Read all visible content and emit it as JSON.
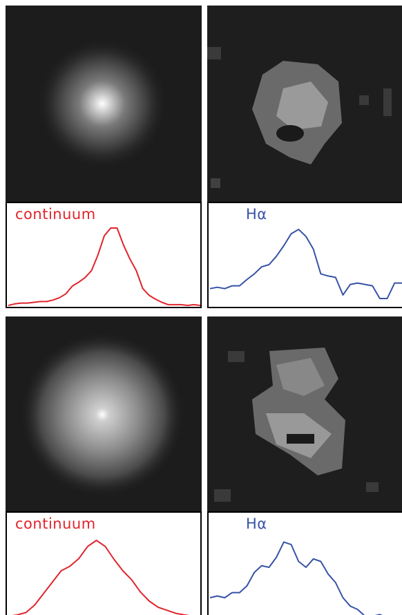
{
  "figure": {
    "rows": [
      {
        "continuum_label": "continuum",
        "halpha_label": "Hα",
        "continuum_color": "#e0242c",
        "halpha_color": "#3652a6"
      },
      {
        "continuum_label": "continuum",
        "halpha_label": "Hα",
        "continuum_color": "#e0242c",
        "halpha_color": "#3652a6"
      }
    ]
  },
  "chart_data": [
    {
      "type": "line",
      "title": "continuum",
      "series": [
        {
          "name": "continuum",
          "color": "#e0242c",
          "values": [
            0.0,
            0.02,
            0.03,
            0.03,
            0.04,
            0.05,
            0.05,
            0.07,
            0.1,
            0.15,
            0.25,
            0.3,
            0.36,
            0.45,
            0.65,
            0.9,
            1.0,
            1.0,
            0.78,
            0.6,
            0.45,
            0.22,
            0.13,
            0.08,
            0.04,
            0.01,
            0.01,
            0.01,
            0.0,
            0.01,
            0.0
          ]
        }
      ]
    },
    {
      "type": "line",
      "title": "Hα",
      "series": [
        {
          "name": "Hα",
          "color": "#3652a6",
          "values": [
            0.14,
            0.16,
            0.14,
            0.18,
            0.18,
            0.27,
            0.35,
            0.45,
            0.48,
            0.6,
            0.75,
            0.92,
            0.98,
            0.88,
            0.7,
            0.35,
            0.32,
            0.3,
            0.05,
            0.2,
            0.22,
            0.2,
            0.18,
            0.0,
            0.0,
            0.22,
            0.22
          ]
        }
      ]
    },
    {
      "type": "line",
      "title": "continuum",
      "series": [
        {
          "name": "continuum",
          "color": "#e0242c",
          "values": [
            0.0,
            0.02,
            0.05,
            0.15,
            0.3,
            0.45,
            0.6,
            0.66,
            0.76,
            0.92,
            1.0,
            0.92,
            0.75,
            0.6,
            0.48,
            0.32,
            0.2,
            0.12,
            0.08,
            0.04,
            0.02,
            0.0
          ]
        }
      ]
    },
    {
      "type": "line",
      "title": "Hα",
      "series": [
        {
          "name": "Hα",
          "color": "#3652a6",
          "values": [
            0.32,
            0.34,
            0.32,
            0.38,
            0.38,
            0.46,
            0.62,
            0.7,
            0.68,
            0.8,
            0.98,
            0.95,
            0.75,
            0.68,
            0.78,
            0.75,
            0.6,
            0.5,
            0.32,
            0.22,
            0.18,
            0.1,
            0.1,
            0.12,
            0.08,
            0.02,
            0.0
          ]
        }
      ]
    }
  ]
}
